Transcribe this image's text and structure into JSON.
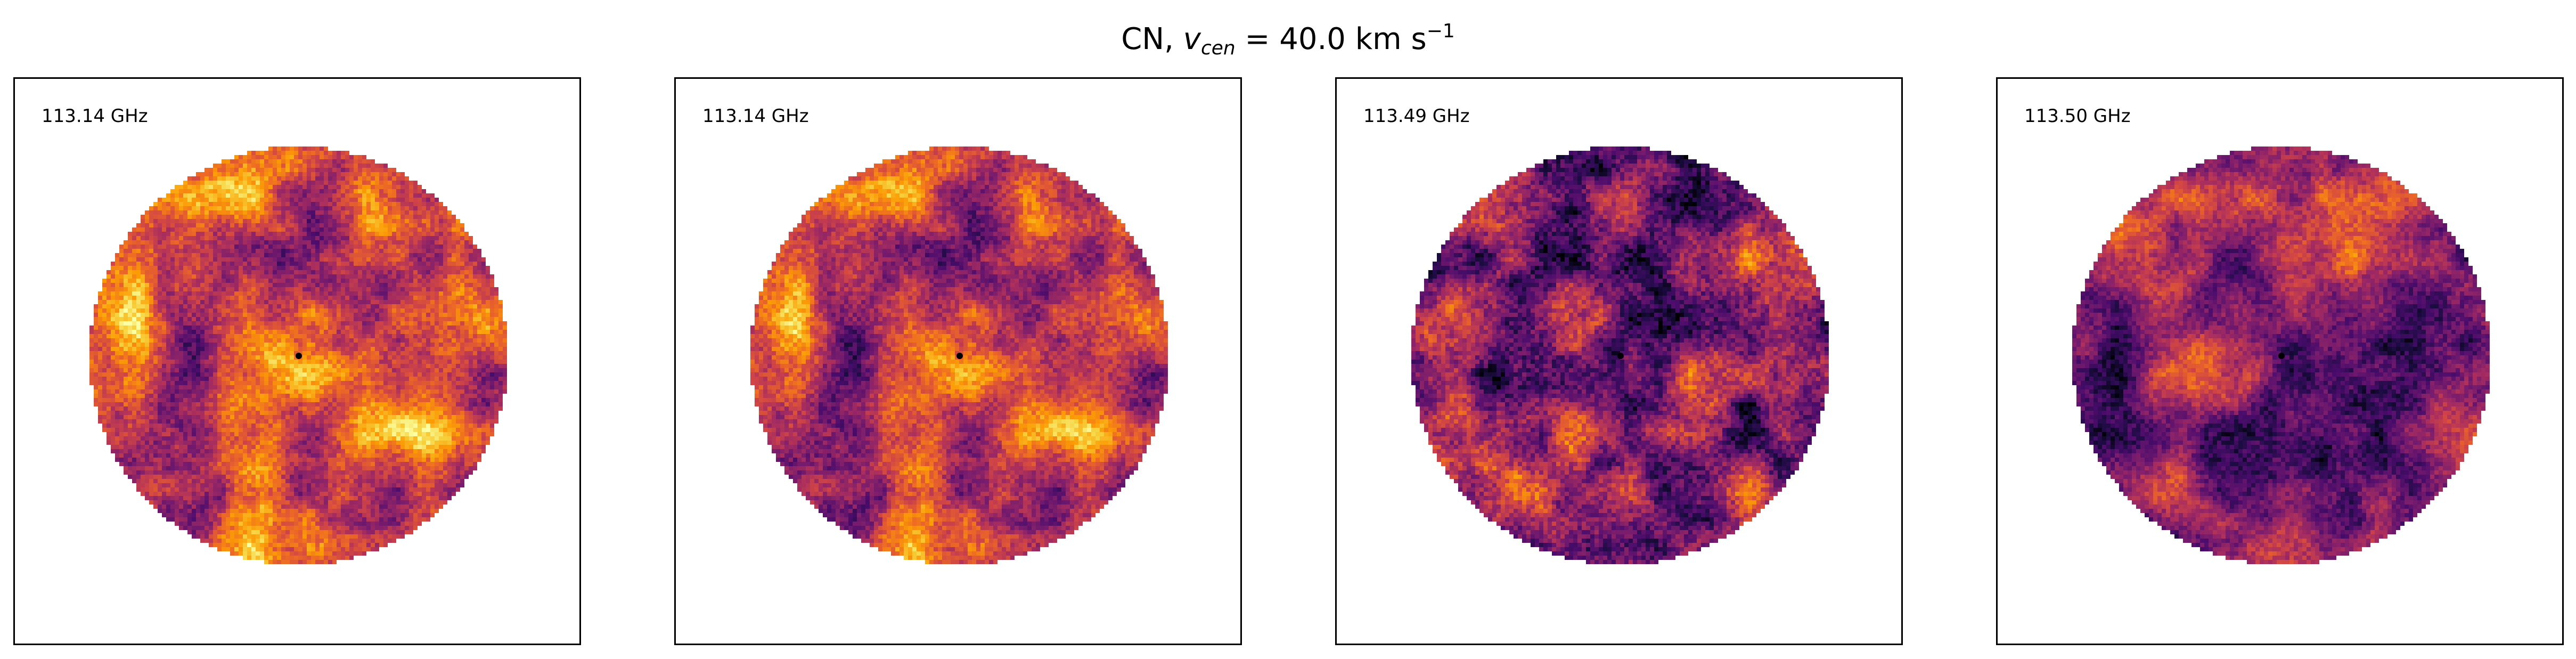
{
  "figure": {
    "molecule": "CN,",
    "vcen_symbol": "v",
    "vcen_subscript": "cen",
    "vcen_equals": "=",
    "vcen_value": "40.0",
    "vcen_unit": "km s",
    "vcen_unit_exponent": "−1"
  },
  "panels": [
    {
      "label": "113.14 GHz",
      "variant": 0
    },
    {
      "label": "113.14 GHz",
      "variant": 1
    },
    {
      "label": "113.49 GHz",
      "variant": 2
    },
    {
      "label": "113.50 GHz",
      "variant": 3
    }
  ],
  "colormap": {
    "name": "inferno",
    "stops": [
      "#000004",
      "#1b0c41",
      "#4a0c6b",
      "#781c6d",
      "#a52c60",
      "#cf4446",
      "#ed6925",
      "#fb9b06",
      "#f7d13d",
      "#fcffa4"
    ]
  }
}
